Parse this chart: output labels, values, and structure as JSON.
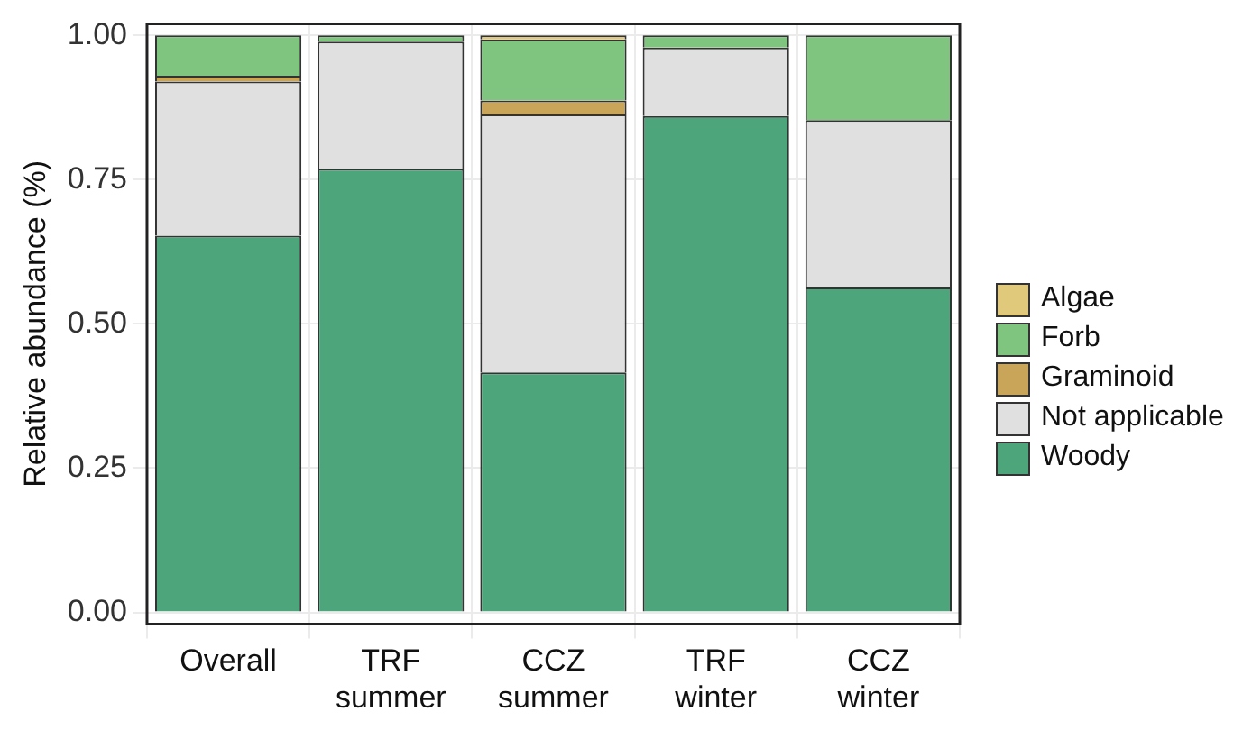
{
  "chart_data": {
    "type": "bar",
    "stacked": true,
    "ylabel": "Relative abundance (%)",
    "categories": [
      "Overall",
      "TRF summer",
      "CCZ summer",
      "TRF winter",
      "CCZ winter"
    ],
    "series": [
      {
        "name": "Woody",
        "color": "#4ca57b",
        "values": [
          0.653,
          0.769,
          0.416,
          0.86,
          0.563
        ]
      },
      {
        "name": "Not applicable",
        "color": "#e0e0e0",
        "values": [
          0.267,
          0.22,
          0.447,
          0.119,
          0.29
        ]
      },
      {
        "name": "Graminoid",
        "color": "#c9a55a",
        "values": [
          0.01,
          null,
          0.024,
          null,
          null
        ]
      },
      {
        "name": "Forb",
        "color": "#7fc47f",
        "values": [
          0.07,
          0.011,
          0.106,
          0.021,
          0.147
        ]
      },
      {
        "name": "Algae",
        "color": "#e0c97a",
        "values": [
          null,
          null,
          0.007,
          null,
          null
        ]
      }
    ],
    "ylim": [
      -0.02,
      1.02
    ],
    "yticks": [
      {
        "value": 0,
        "label": "0.00"
      },
      {
        "value": 0.25,
        "label": "0.25"
      },
      {
        "value": 0.5,
        "label": "0.50"
      },
      {
        "value": 0.75,
        "label": "0.75"
      },
      {
        "value": 1,
        "label": "1.00"
      }
    ],
    "grid": true,
    "legend": "right"
  }
}
